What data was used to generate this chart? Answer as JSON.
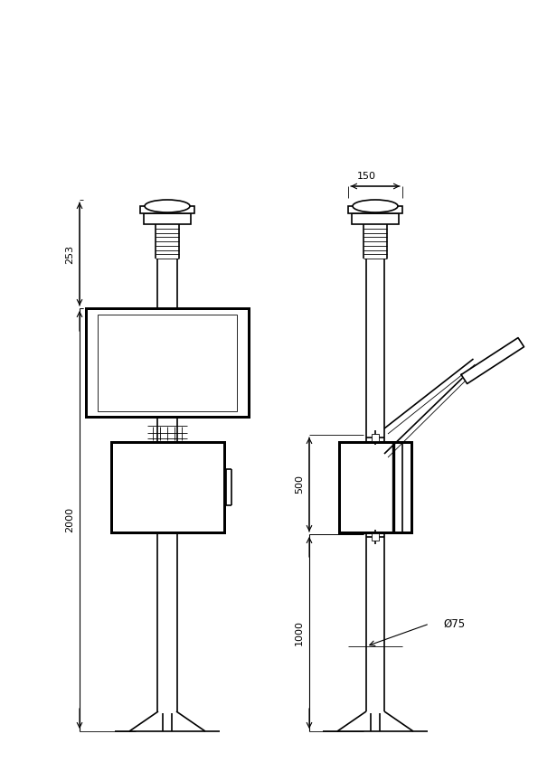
{
  "bg_color": "#ffffff",
  "line_color": "#000000",
  "line_width": 1.2,
  "thin_line": 0.6,
  "fig_width": 6.16,
  "fig_height": 8.64,
  "dim_253": "253",
  "dim_2000": "2000",
  "dim_150": "150",
  "dim_500": "500",
  "dim_1000": "1000",
  "dim_phi75": "Ø75"
}
